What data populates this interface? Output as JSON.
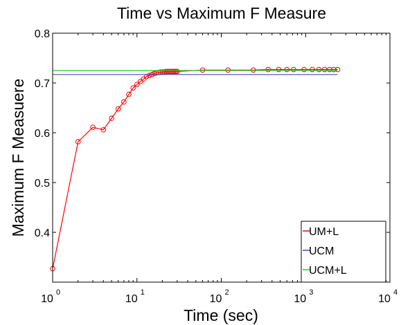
{
  "chart_data": {
    "type": "line",
    "title": "Time vs Maximum F Measure",
    "xlabel": "Time (sec)",
    "ylabel": "Maximum F Measuere",
    "xscale": "log",
    "xlim": [
      1,
      10000
    ],
    "ylim": [
      0.3,
      0.8
    ],
    "x_ticks": [
      {
        "value": 1,
        "base": "10",
        "exp": "0"
      },
      {
        "value": 10,
        "base": "10",
        "exp": "1"
      },
      {
        "value": 100,
        "base": "10",
        "exp": "2"
      },
      {
        "value": 1000,
        "base": "10",
        "exp": "3"
      },
      {
        "value": 10000,
        "base": "10",
        "exp": "4"
      }
    ],
    "y_ticks": [
      {
        "value": 0.4,
        "label": "0.4"
      },
      {
        "value": 0.5,
        "label": "0.5"
      },
      {
        "value": 0.6,
        "label": "0.6"
      },
      {
        "value": 0.7,
        "label": "0.7"
      },
      {
        "value": 0.8,
        "label": "0.8"
      }
    ],
    "grid": false,
    "legend_position": "bottom-right",
    "series": [
      {
        "name": "UM+L",
        "color": "#ff0000",
        "marker": "circle",
        "x": [
          1,
          2,
          3,
          4,
          5,
          6,
          7,
          8,
          9,
          10,
          11,
          12,
          13,
          14,
          15,
          16,
          17,
          18,
          19,
          20,
          21,
          22,
          23,
          24,
          25,
          26,
          27,
          28,
          29,
          30,
          60,
          120,
          240,
          360,
          480,
          600,
          720,
          960,
          1200,
          1440,
          1680,
          1920,
          2160,
          2400
        ],
        "y": [
          0.327,
          0.582,
          0.611,
          0.606,
          0.629,
          0.648,
          0.662,
          0.677,
          0.69,
          0.697,
          0.703,
          0.708,
          0.713,
          0.715,
          0.717,
          0.719,
          0.72,
          0.721,
          0.722,
          0.722,
          0.722,
          0.723,
          0.723,
          0.723,
          0.723,
          0.723,
          0.723,
          0.723,
          0.723,
          0.723,
          0.726,
          0.726,
          0.726,
          0.727,
          0.727,
          0.727,
          0.727,
          0.727,
          0.727,
          0.727,
          0.727,
          0.727,
          0.727,
          0.727
        ]
      },
      {
        "name": "UCM",
        "color": "#4b4bb4",
        "marker": "none",
        "x": [
          1,
          2400
        ],
        "y": [
          0.717,
          0.717
        ]
      },
      {
        "name": "UCM+L",
        "color": "#22cc22",
        "marker": "none",
        "x": [
          1,
          2400
        ],
        "y": [
          0.725,
          0.725
        ]
      }
    ]
  }
}
